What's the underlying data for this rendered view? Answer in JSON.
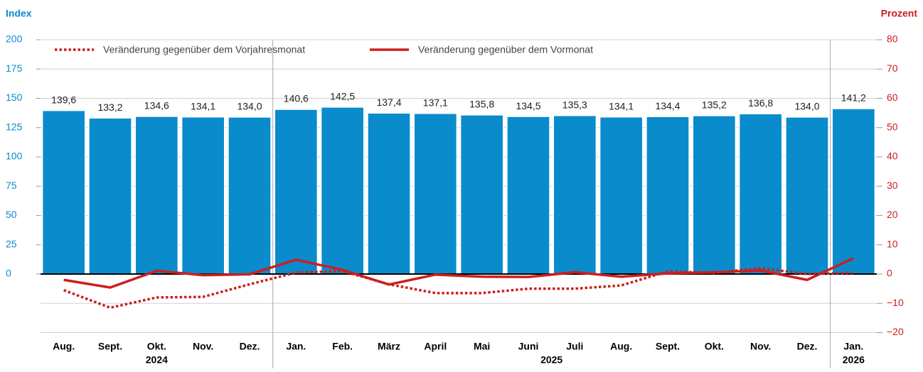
{
  "chart_data": {
    "type": "bar",
    "y_title": "Index",
    "y2_title": "Prozent",
    "categories": [
      "Aug.",
      "Sept.",
      "Okt.",
      "Nov.",
      "Dez.",
      "Jan.",
      "Feb.",
      "März",
      "April",
      "Mai",
      "Juni",
      "Juli",
      "Aug.",
      "Sept.",
      "Okt.",
      "Nov.",
      "Dez.",
      "Jan."
    ],
    "category_groups": [
      "2024",
      "2024",
      "2024",
      "2024",
      "2024",
      "2025",
      "2025",
      "2025",
      "2025",
      "2025",
      "2025",
      "2025",
      "2025",
      "2025",
      "2025",
      "2025",
      "2025",
      "2026"
    ],
    "values": [
      139.6,
      133.2,
      134.6,
      134.1,
      134.0,
      140.6,
      142.5,
      137.4,
      137.1,
      135.8,
      134.5,
      135.3,
      134.1,
      134.4,
      135.2,
      136.8,
      134.0,
      141.2
    ],
    "value_labels": [
      "139,6",
      "133,2",
      "134,6",
      "134,1",
      "134,0",
      "140,6",
      "142,5",
      "137,4",
      "137,1",
      "135,8",
      "134,5",
      "135,3",
      "134,1",
      "134,4",
      "135,2",
      "136,8",
      "134,0",
      "141,2"
    ],
    "color": "#0a8bcc",
    "series": [
      {
        "name": "Veränderung gegenüber dem Vorjahresmonat",
        "color": "#cc1e1e",
        "style": "dotted",
        "axis": "y2",
        "values": [
          -5.5,
          -11.5,
          -8.0,
          -7.8,
          -3.5,
          0.5,
          1.0,
          -3.5,
          -6.5,
          -6.5,
          -5.0,
          -5.0,
          -3.9,
          0.9,
          0.4,
          2.0,
          0.0,
          0.4
        ]
      },
      {
        "name": "Veränderung gegenüber dem Vormonat",
        "color": "#cc1e1e",
        "style": "solid",
        "axis": "y2",
        "values": [
          -2.0,
          -4.6,
          1.1,
          -0.4,
          -0.1,
          4.9,
          1.4,
          -3.6,
          -0.2,
          -0.9,
          -1.0,
          0.6,
          -0.9,
          0.2,
          0.6,
          1.2,
          -2.0,
          5.4
        ]
      }
    ],
    "ylim": [
      -50,
      200
    ],
    "yticks": [
      0,
      25,
      50,
      75,
      100,
      125,
      150,
      175,
      200
    ],
    "y2lim": [
      -20,
      80
    ],
    "y2ticks": [
      {
        "value": -20,
        "label": "−20"
      },
      {
        "value": -10,
        "label": "−10"
      },
      0,
      10,
      20,
      30,
      40,
      50,
      60,
      70,
      80
    ],
    "grid": true
  }
}
